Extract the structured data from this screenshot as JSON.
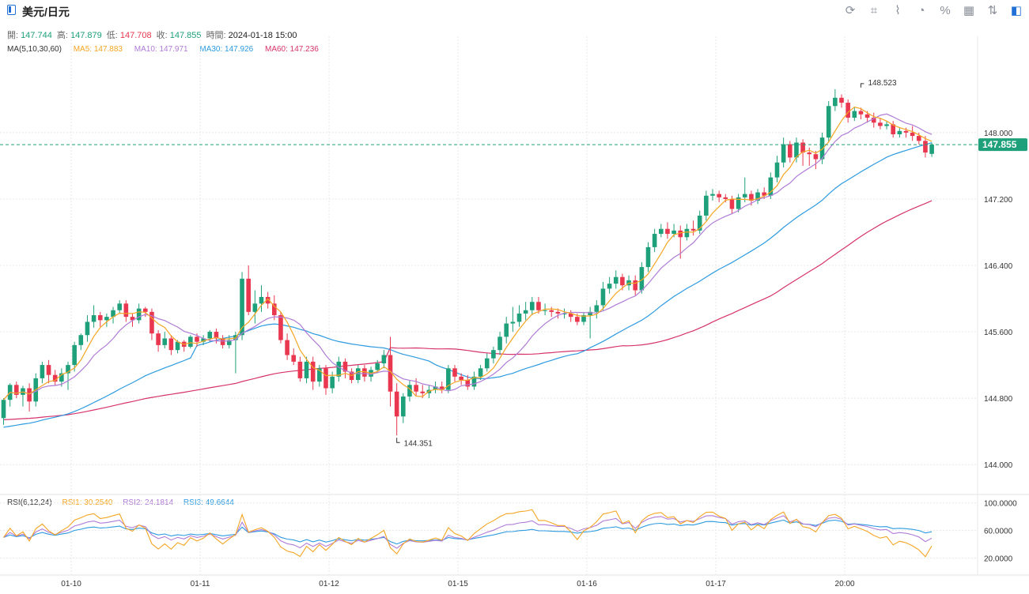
{
  "header": {
    "title": "美元/日元",
    "tools": [
      "refresh-icon",
      "draw-icon",
      "chart-style-icon",
      "pie-icon",
      "percent-icon",
      "grid-icon",
      "compare-icon",
      "sidebar-icon"
    ]
  },
  "ohlc": {
    "open_label": "開:",
    "open": "147.744",
    "high_label": "高:",
    "high": "147.879",
    "low_label": "低:",
    "low": "147.708",
    "close_label": "收:",
    "close": "147.855",
    "time_label": "時間:",
    "time": "2024-01-18 15:00"
  },
  "ma_legend": {
    "title": "MA(5,10,30,60)",
    "ma5": "MA5: 147.883",
    "ma10": "MA10: 147.971",
    "ma30": "MA30: 147.926",
    "ma60": "MA60: 147.236"
  },
  "rsi_legend": {
    "title": "RSI(6,12,24)",
    "rsi1": "RSI1: 30.2540",
    "rsi2": "RSI2: 24.1814",
    "rsi3": "RSI3: 49.6644"
  },
  "colors": {
    "up": "#1ea07a",
    "down": "#e8374f",
    "ma5": "#f5a623",
    "ma10": "#b07cd6",
    "ma30": "#2d9be0",
    "ma60": "#d6336c",
    "rsi1": "#f5a623",
    "rsi2": "#b07cd6",
    "rsi3": "#2d9be0",
    "price_tag": "#1ea07a"
  },
  "chart_data": {
    "type": "candlestick",
    "y_ticks": [
      "148.000",
      "147.200",
      "146.400",
      "145.600",
      "144.800",
      "144.000"
    ],
    "y_tick_values": [
      148.0,
      147.2,
      146.4,
      145.6,
      144.8,
      144.0
    ],
    "ylim": [
      143.64,
      149.16
    ],
    "x_labels": [
      "01-10",
      "01-11",
      "01-12",
      "01-15",
      "01-16",
      "01-17",
      "20:00"
    ],
    "x_label_index": [
      10.5,
      30.5,
      50.5,
      70.5,
      90.5,
      110.5,
      130.5
    ],
    "last_price": 147.855,
    "last_price_label": "147.855",
    "max_marker": {
      "index": 133,
      "value": 148.523,
      "label": "148.523"
    },
    "min_marker": {
      "index": 61,
      "value": 144.351,
      "label": "144.351"
    },
    "candles": [
      [
        144.56,
        144.78,
        144.48,
        144.8
      ],
      [
        144.78,
        144.96,
        144.7,
        144.98
      ],
      [
        144.96,
        144.84,
        144.8,
        145.0
      ],
      [
        144.84,
        144.92,
        144.7,
        144.95
      ],
      [
        144.92,
        144.76,
        144.64,
        144.98
      ],
      [
        144.76,
        145.04,
        144.7,
        145.1
      ],
      [
        145.04,
        145.2,
        144.98,
        145.24
      ],
      [
        145.2,
        145.08,
        144.98,
        145.26
      ],
      [
        145.08,
        145.0,
        144.95,
        145.14
      ],
      [
        145.0,
        145.1,
        144.94,
        145.16
      ],
      [
        145.1,
        145.2,
        144.9,
        145.24
      ],
      [
        145.2,
        145.44,
        145.12,
        145.48
      ],
      [
        145.44,
        145.56,
        145.38,
        145.58
      ],
      [
        145.56,
        145.72,
        145.48,
        145.8
      ],
      [
        145.72,
        145.8,
        145.65,
        145.92
      ],
      [
        145.8,
        145.74,
        145.66,
        145.84
      ],
      [
        145.74,
        145.78,
        145.66,
        145.82
      ],
      [
        145.78,
        145.86,
        145.7,
        145.9
      ],
      [
        145.86,
        145.94,
        145.82,
        145.98
      ],
      [
        145.94,
        145.78,
        145.72,
        145.98
      ],
      [
        145.78,
        145.74,
        145.66,
        145.82
      ],
      [
        145.74,
        145.88,
        145.7,
        145.94
      ],
      [
        145.88,
        145.84,
        145.78,
        145.9
      ],
      [
        145.84,
        145.58,
        145.5,
        145.88
      ],
      [
        145.58,
        145.44,
        145.36,
        145.62
      ],
      [
        145.44,
        145.52,
        145.4,
        145.6
      ],
      [
        145.52,
        145.38,
        145.32,
        145.56
      ],
      [
        145.38,
        145.48,
        145.34,
        145.5
      ],
      [
        145.48,
        145.42,
        145.36,
        145.5
      ],
      [
        145.42,
        145.54,
        145.4,
        145.56
      ],
      [
        145.54,
        145.48,
        145.42,
        145.58
      ],
      [
        145.48,
        145.52,
        145.44,
        145.56
      ],
      [
        145.52,
        145.6,
        145.48,
        145.62
      ],
      [
        145.6,
        145.52,
        145.46,
        145.64
      ],
      [
        145.52,
        145.44,
        145.4,
        145.56
      ],
      [
        145.44,
        145.5,
        145.4,
        145.56
      ],
      [
        145.5,
        145.56,
        145.1,
        145.6
      ],
      [
        145.56,
        146.24,
        145.5,
        146.32
      ],
      [
        146.24,
        145.84,
        145.8,
        146.4
      ],
      [
        145.84,
        145.94,
        145.7,
        146.1
      ],
      [
        145.94,
        146.02,
        145.84,
        146.16
      ],
      [
        146.02,
        145.94,
        145.88,
        146.08
      ],
      [
        145.94,
        145.8,
        145.74,
        146.04
      ],
      [
        145.8,
        145.5,
        145.46,
        145.84
      ],
      [
        145.5,
        145.32,
        145.26,
        145.58
      ],
      [
        145.32,
        145.24,
        145.2,
        145.4
      ],
      [
        145.24,
        145.04,
        145.0,
        145.3
      ],
      [
        145.04,
        145.24,
        144.98,
        145.3
      ],
      [
        145.24,
        145.0,
        144.9,
        145.3
      ],
      [
        145.0,
        145.16,
        144.94,
        145.2
      ],
      [
        145.16,
        144.92,
        144.84,
        145.2
      ],
      [
        144.92,
        145.06,
        144.86,
        145.12
      ],
      [
        145.06,
        145.24,
        145.0,
        145.3
      ],
      [
        145.24,
        145.12,
        145.04,
        145.28
      ],
      [
        145.12,
        145.02,
        144.98,
        145.16
      ],
      [
        145.02,
        145.16,
        144.98,
        145.2
      ],
      [
        145.16,
        145.06,
        145.0,
        145.2
      ],
      [
        145.06,
        145.14,
        145.0,
        145.18
      ],
      [
        145.14,
        145.22,
        145.1,
        145.26
      ],
      [
        145.22,
        145.32,
        145.16,
        145.38
      ],
      [
        145.32,
        144.88,
        144.7,
        145.54
      ],
      [
        144.88,
        144.58,
        144.351,
        144.98
      ],
      [
        144.58,
        144.82,
        144.5,
        144.86
      ],
      [
        144.82,
        144.96,
        144.76,
        145.02
      ],
      [
        144.96,
        144.88,
        144.82,
        145.04
      ],
      [
        144.88,
        144.86,
        144.8,
        144.96
      ],
      [
        144.86,
        144.9,
        144.8,
        144.96
      ],
      [
        144.9,
        144.94,
        144.86,
        145.0
      ],
      [
        144.94,
        144.9,
        144.86,
        145.0
      ],
      [
        144.9,
        145.16,
        144.86,
        145.2
      ],
      [
        145.16,
        145.06,
        145.0,
        145.2
      ],
      [
        145.06,
        145.02,
        144.96,
        145.1
      ],
      [
        145.02,
        144.94,
        144.9,
        145.08
      ],
      [
        144.94,
        145.06,
        144.9,
        145.12
      ],
      [
        145.06,
        145.16,
        145.02,
        145.2
      ],
      [
        145.16,
        145.28,
        145.12,
        145.34
      ],
      [
        145.28,
        145.38,
        145.22,
        145.42
      ],
      [
        145.38,
        145.54,
        145.32,
        145.6
      ],
      [
        145.54,
        145.7,
        145.46,
        145.78
      ],
      [
        145.7,
        145.72,
        145.6,
        145.9
      ],
      [
        145.72,
        145.82,
        145.66,
        145.92
      ],
      [
        145.82,
        145.86,
        145.74,
        145.96
      ],
      [
        145.86,
        145.96,
        145.8,
        146.02
      ],
      [
        145.96,
        145.86,
        145.82,
        146.02
      ],
      [
        145.86,
        145.86,
        145.8,
        145.94
      ],
      [
        145.86,
        145.84,
        145.78,
        145.9
      ],
      [
        145.84,
        145.82,
        145.76,
        145.88
      ],
      [
        145.82,
        145.82,
        145.76,
        145.88
      ],
      [
        145.82,
        145.78,
        145.72,
        145.86
      ],
      [
        145.78,
        145.72,
        145.68,
        145.82
      ],
      [
        145.72,
        145.8,
        145.68,
        145.84
      ],
      [
        145.8,
        145.84,
        145.52,
        145.9
      ],
      [
        145.84,
        145.92,
        145.76,
        145.98
      ],
      [
        145.92,
        146.12,
        145.86,
        146.2
      ],
      [
        146.12,
        146.18,
        146.06,
        146.26
      ],
      [
        146.18,
        146.26,
        146.12,
        146.34
      ],
      [
        146.26,
        146.16,
        146.1,
        146.3
      ],
      [
        146.16,
        146.22,
        146.1,
        146.28
      ],
      [
        146.22,
        146.1,
        146.04,
        146.28
      ],
      [
        146.1,
        146.38,
        146.06,
        146.44
      ],
      [
        146.38,
        146.62,
        146.32,
        146.68
      ],
      [
        146.62,
        146.78,
        146.56,
        146.84
      ],
      [
        146.78,
        146.84,
        146.74,
        146.9
      ],
      [
        146.84,
        146.78,
        146.72,
        146.92
      ],
      [
        146.78,
        146.82,
        146.74,
        146.9
      ],
      [
        146.82,
        146.74,
        146.48,
        146.88
      ],
      [
        146.74,
        146.84,
        146.7,
        146.9
      ],
      [
        146.84,
        146.82,
        146.76,
        146.94
      ],
      [
        146.82,
        147.0,
        146.78,
        147.06
      ],
      [
        147.0,
        147.24,
        146.94,
        147.3
      ],
      [
        147.24,
        147.26,
        147.18,
        147.32
      ],
      [
        147.26,
        147.22,
        147.16,
        147.3
      ],
      [
        147.22,
        147.2,
        147.16,
        147.26
      ],
      [
        147.2,
        147.08,
        147.02,
        147.24
      ],
      [
        147.08,
        147.22,
        147.04,
        147.26
      ],
      [
        147.22,
        147.26,
        147.16,
        147.46
      ],
      [
        147.26,
        147.18,
        147.12,
        147.3
      ],
      [
        147.18,
        147.28,
        147.14,
        147.32
      ],
      [
        147.28,
        147.24,
        147.2,
        147.34
      ],
      [
        147.24,
        147.46,
        147.2,
        147.52
      ],
      [
        147.46,
        147.64,
        147.4,
        147.72
      ],
      [
        147.64,
        147.86,
        147.58,
        147.94
      ],
      [
        147.86,
        147.7,
        147.64,
        147.9
      ],
      [
        147.7,
        147.88,
        147.64,
        147.94
      ],
      [
        147.88,
        147.76,
        147.6,
        147.92
      ],
      [
        147.76,
        147.74,
        147.6,
        147.82
      ],
      [
        147.74,
        147.68,
        147.56,
        147.78
      ],
      [
        147.68,
        147.94,
        147.62,
        148.0
      ],
      [
        147.94,
        148.32,
        147.88,
        148.38
      ],
      [
        148.32,
        148.42,
        148.26,
        148.523
      ],
      [
        148.42,
        148.36,
        148.3,
        148.46
      ],
      [
        148.36,
        148.18,
        148.12,
        148.4
      ],
      [
        148.18,
        148.26,
        148.14,
        148.3
      ],
      [
        148.26,
        148.22,
        148.16,
        148.3
      ],
      [
        148.22,
        148.18,
        148.12,
        148.26
      ],
      [
        148.18,
        148.12,
        148.06,
        148.24
      ],
      [
        148.12,
        148.08,
        148.04,
        148.18
      ],
      [
        148.08,
        148.1,
        148.04,
        148.14
      ],
      [
        148.1,
        147.98,
        147.94,
        148.14
      ],
      [
        147.98,
        148.02,
        147.94,
        148.06
      ],
      [
        148.02,
        148.0,
        147.94,
        148.06
      ],
      [
        148.0,
        147.96,
        147.9,
        148.08
      ],
      [
        147.96,
        147.9,
        147.86,
        148.0
      ],
      [
        147.9,
        147.76,
        147.7,
        147.96
      ],
      [
        147.744,
        147.855,
        147.708,
        147.879
      ]
    ],
    "rsi": {
      "ylim": [
        0,
        110
      ],
      "y_ticks": [
        "100.0000",
        "60.0000",
        "20.0000"
      ],
      "y_tick_values": [
        100,
        60,
        20
      ]
    }
  }
}
